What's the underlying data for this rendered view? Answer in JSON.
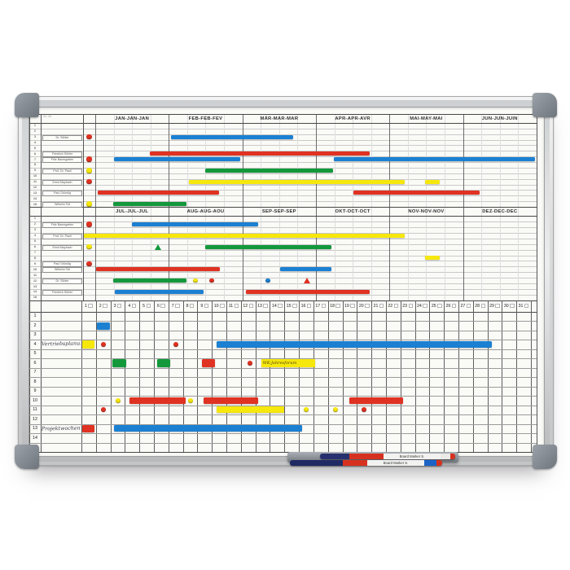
{
  "board": {
    "note": "01.01. - 30.06.",
    "colors": {
      "blue": "#1b80d2",
      "red": "#e03222",
      "yellow": "#f6e70c",
      "green": "#13993c"
    },
    "months_h1": [
      "JAN-JAN-JAN",
      "FEB-FEB-FEV",
      "MÄR-MAR-MAR",
      "APR-APR-AVR",
      "MAI-MAY-MAI",
      "JUN-JUN-JUIN"
    ],
    "months_h2": [
      "JUL-JUL-JUL",
      "AUG-AUG-AOU",
      "SEP-SEP-SEP",
      "OKT-OCT-OCT",
      "NOV-NOV-NOV",
      "DEZ-DEC-DEC"
    ],
    "day_numbers": [
      1,
      2,
      3,
      4,
      5,
      6,
      7,
      8,
      9,
      10,
      11,
      12,
      13,
      14,
      15,
      16,
      17,
      18,
      19,
      20,
      21,
      22,
      23,
      24,
      25,
      26,
      27,
      28,
      29,
      30,
      31
    ],
    "row_numbers": [
      1,
      2,
      3,
      4,
      5,
      6,
      7,
      8,
      9,
      10,
      11,
      12,
      13,
      14,
      15
    ],
    "half1": {
      "labels": [
        {
          "row": 3,
          "text": "Dr. Söhler"
        },
        {
          "row": 6,
          "text": "Friedrich Söhler"
        },
        {
          "row": 7,
          "text": "Fritz Baumgarten"
        },
        {
          "row": 9,
          "text": "Prof. Dr. Pauli"
        },
        {
          "row": 11,
          "text": "Ernst Maybach"
        },
        {
          "row": 13,
          "text": "Paul Gründig"
        },
        {
          "row": 15,
          "text": "Wilhelm Tell"
        }
      ],
      "side_dots": [
        {
          "row": 3,
          "color": "red"
        },
        {
          "row": 7,
          "color": "red"
        },
        {
          "row": 9,
          "color": "yellow"
        },
        {
          "row": 11,
          "color": "red"
        },
        {
          "row": 15,
          "color": "yellow"
        }
      ],
      "marks": [
        {
          "row": 3,
          "kind": "bar",
          "color": "blue",
          "from": 1.03,
          "to": 2.69
        },
        {
          "row": 6,
          "kind": "bar",
          "color": "red",
          "from": 0.74,
          "to": 3.73
        },
        {
          "row": 7,
          "kind": "bar",
          "color": "blue",
          "from": 0.25,
          "to": 1.97
        },
        {
          "row": 7,
          "kind": "bar",
          "color": "blue",
          "from": 3.24,
          "to": 5.98
        },
        {
          "row": 9,
          "kind": "bar",
          "color": "green",
          "from": 1.49,
          "to": 3.23
        },
        {
          "row": 11,
          "kind": "bar",
          "color": "yellow",
          "from": 1.27,
          "to": 4.21
        },
        {
          "row": 11,
          "kind": "bar",
          "color": "yellow",
          "from": 4.48,
          "to": 4.68
        },
        {
          "row": 13,
          "kind": "bar",
          "color": "red",
          "from": 0.03,
          "to": 1.68
        },
        {
          "row": 13,
          "kind": "bar",
          "color": "red",
          "from": 3.51,
          "to": 5.23
        },
        {
          "row": 15,
          "kind": "bar",
          "color": "green",
          "from": 0.24,
          "to": 1.24
        }
      ]
    },
    "half2": {
      "labels": [
        {
          "row": 2,
          "text": "Fritz Baumgarten"
        },
        {
          "row": 4,
          "text": "Prof. Dr. Pauli"
        },
        {
          "row": 6,
          "text": "Ernst Maybach"
        },
        {
          "row": 9,
          "text": "Paul Gründig"
        },
        {
          "row": 10,
          "text": "Wilhelm Tell"
        },
        {
          "row": 12,
          "text": "Dr. Söhler"
        },
        {
          "row": 14,
          "text": "Friedrich Söhler"
        }
      ],
      "side_dots": [
        {
          "row": 2,
          "color": "red"
        },
        {
          "row": 6,
          "color": "yellow"
        },
        {
          "row": 9,
          "color": "red"
        }
      ],
      "marks": [
        {
          "row": 2,
          "kind": "bar",
          "color": "blue",
          "from": 0.5,
          "to": 2.21
        },
        {
          "row": 4,
          "kind": "bar",
          "color": "yellow",
          "from": -0.15,
          "to": 4.21
        },
        {
          "row": 6,
          "kind": "tri",
          "color": "green",
          "at": 0.85
        },
        {
          "row": 6,
          "kind": "bar",
          "color": "green",
          "from": 1.49,
          "to": 3.21
        },
        {
          "row": 8,
          "kind": "bar",
          "color": "yellow",
          "from": 4.48,
          "to": 4.68
        },
        {
          "row": 10,
          "kind": "bar",
          "color": "red",
          "from": 0.01,
          "to": 1.69
        },
        {
          "row": 10,
          "kind": "bar",
          "color": "blue",
          "from": 2.51,
          "to": 3.21
        },
        {
          "row": 12,
          "kind": "bar",
          "color": "green",
          "from": 0.24,
          "to": 1.24
        },
        {
          "row": 12,
          "kind": "dot",
          "color": "yellow",
          "at": 1.36
        },
        {
          "row": 12,
          "kind": "dot",
          "color": "red",
          "at": 1.58
        },
        {
          "row": 12,
          "kind": "dot",
          "color": "blue",
          "at": 2.35
        },
        {
          "row": 12,
          "kind": "tri",
          "color": "red",
          "at": 2.88
        },
        {
          "row": 14,
          "kind": "bar",
          "color": "blue",
          "from": 0.27,
          "to": 1.47
        },
        {
          "row": 14,
          "kind": "bar",
          "color": "red",
          "from": 2.05,
          "to": 3.73
        }
      ]
    },
    "daygrid": {
      "labels": [
        {
          "row": 4,
          "text": "Vertriebsplanung"
        },
        {
          "row": 13,
          "text": "Projektwochen"
        }
      ],
      "marks": [
        {
          "row": 2,
          "kind": "bar",
          "color": "blue",
          "from": 1.05,
          "to": 1.95
        },
        {
          "row": 4,
          "kind": "bar",
          "color": "yellow",
          "from": 0.08,
          "to": 0.92
        },
        {
          "row": 4,
          "kind": "dot",
          "color": "red",
          "at": 1.5
        },
        {
          "row": 4,
          "kind": "dot",
          "color": "red",
          "at": 6.5
        },
        {
          "row": 4,
          "kind": "bar",
          "color": "blue",
          "from": 9.3,
          "to": 28.3
        },
        {
          "row": 6,
          "kind": "bar",
          "color": "green",
          "from": 2.15,
          "to": 3.1
        },
        {
          "row": 6,
          "kind": "bar",
          "color": "green",
          "from": 5.2,
          "to": 6.1
        },
        {
          "row": 6,
          "kind": "bar",
          "color": "red",
          "from": 8.3,
          "to": 9.2
        },
        {
          "row": 6,
          "kind": "dot",
          "color": "red",
          "at": 11.6
        },
        {
          "row": 6,
          "kind": "note",
          "color": "yellow",
          "from": 12.4,
          "to": 16.1,
          "text": "WK-Jahresforum"
        },
        {
          "row": 10,
          "kind": "dot",
          "color": "yellow",
          "at": 2.5
        },
        {
          "row": 10,
          "kind": "bar",
          "color": "red",
          "from": 3.3,
          "to": 7.2
        },
        {
          "row": 10,
          "kind": "dot",
          "color": "yellow",
          "at": 7.5
        },
        {
          "row": 10,
          "kind": "bar",
          "color": "red",
          "from": 8.4,
          "to": 12.2
        },
        {
          "row": 10,
          "kind": "bar",
          "color": "red",
          "from": 18.5,
          "to": 22.2
        },
        {
          "row": 11,
          "kind": "dot",
          "color": "red",
          "at": 1.5
        },
        {
          "row": 11,
          "kind": "bar",
          "color": "yellow",
          "from": 9.3,
          "to": 14.0
        },
        {
          "row": 11,
          "kind": "dot",
          "color": "yellow",
          "at": 15.5
        },
        {
          "row": 11,
          "kind": "dot",
          "color": "yellow",
          "at": 17.5
        },
        {
          "row": 11,
          "kind": "dot",
          "color": "red",
          "at": 19.5
        },
        {
          "row": 13,
          "kind": "bar",
          "color": "red",
          "from": 0.08,
          "to": 0.92
        },
        {
          "row": 13,
          "kind": "bar",
          "color": "blue",
          "from": 2.25,
          "to": 15.2
        }
      ]
    },
    "tray": {
      "marker1_label": "Board Marker S.",
      "marker2_label": "Board Marker S."
    }
  }
}
